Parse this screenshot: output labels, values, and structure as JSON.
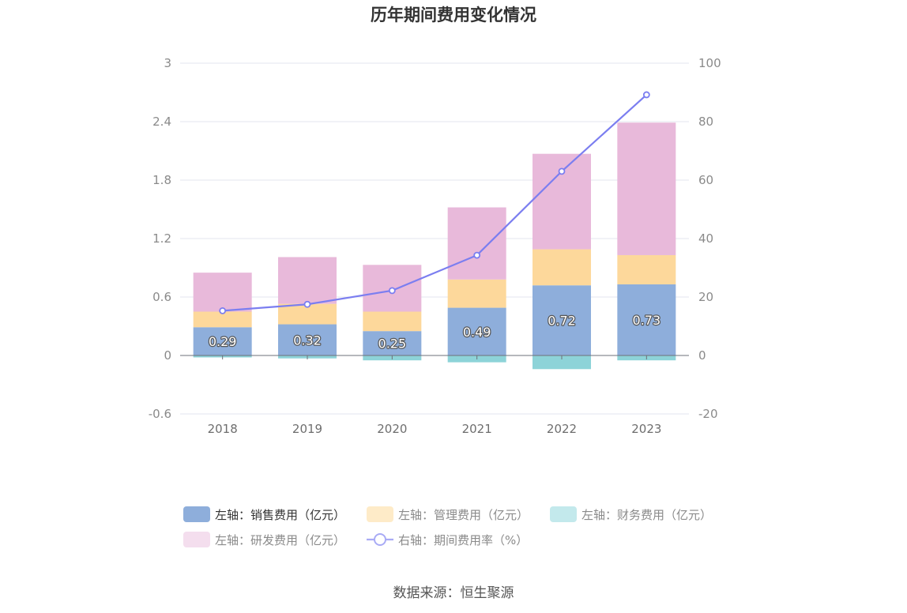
{
  "chart_data": {
    "type": "bar",
    "title": "历年期间费用变化情况",
    "categories": [
      "2018",
      "2019",
      "2020",
      "2021",
      "2022",
      "2023"
    ],
    "stacked": true,
    "left_axis": {
      "ticks": [
        "3",
        "2.4",
        "1.8",
        "1.2",
        "0.6",
        "0",
        "-0.6"
      ],
      "ylim": [
        -0.6,
        3
      ]
    },
    "right_axis": {
      "ticks": [
        "100",
        "80",
        "60",
        "40",
        "20",
        "0",
        "-20"
      ],
      "ylim": [
        -20,
        100
      ]
    },
    "series": [
      {
        "name": "左轴：销售费用（亿元）",
        "type": "bar",
        "axis": "left",
        "color": "#8eaedb",
        "values": [
          0.29,
          0.32,
          0.25,
          0.49,
          0.72,
          0.73
        ],
        "labels": [
          "0.29",
          "0.32",
          "0.25",
          "0.49",
          "0.72",
          "0.73"
        ]
      },
      {
        "name": "左轴：管理费用（亿元）",
        "type": "bar",
        "axis": "left",
        "color": "#fdd89b",
        "values": [
          0.16,
          0.21,
          0.2,
          0.29,
          0.37,
          0.3
        ]
      },
      {
        "name": "左轴：财务费用（亿元）",
        "type": "bar",
        "axis": "left",
        "color": "#8dd3d8",
        "values": [
          -0.02,
          -0.03,
          -0.05,
          -0.07,
          -0.14,
          -0.05
        ]
      },
      {
        "name": "左轴：研发费用（亿元）",
        "type": "bar",
        "axis": "left",
        "color": "#e8b9da",
        "values": [
          0.4,
          0.48,
          0.48,
          0.74,
          0.98,
          1.36
        ]
      },
      {
        "name": "右轴：期间费用率（%）",
        "type": "line",
        "axis": "right",
        "color": "#7b7ef0",
        "values": [
          15.3,
          17.5,
          22.2,
          34.3,
          63.0,
          89.2
        ]
      }
    ],
    "legend_position": "bottom",
    "grid": true
  },
  "source": "数据来源：恒生聚源"
}
